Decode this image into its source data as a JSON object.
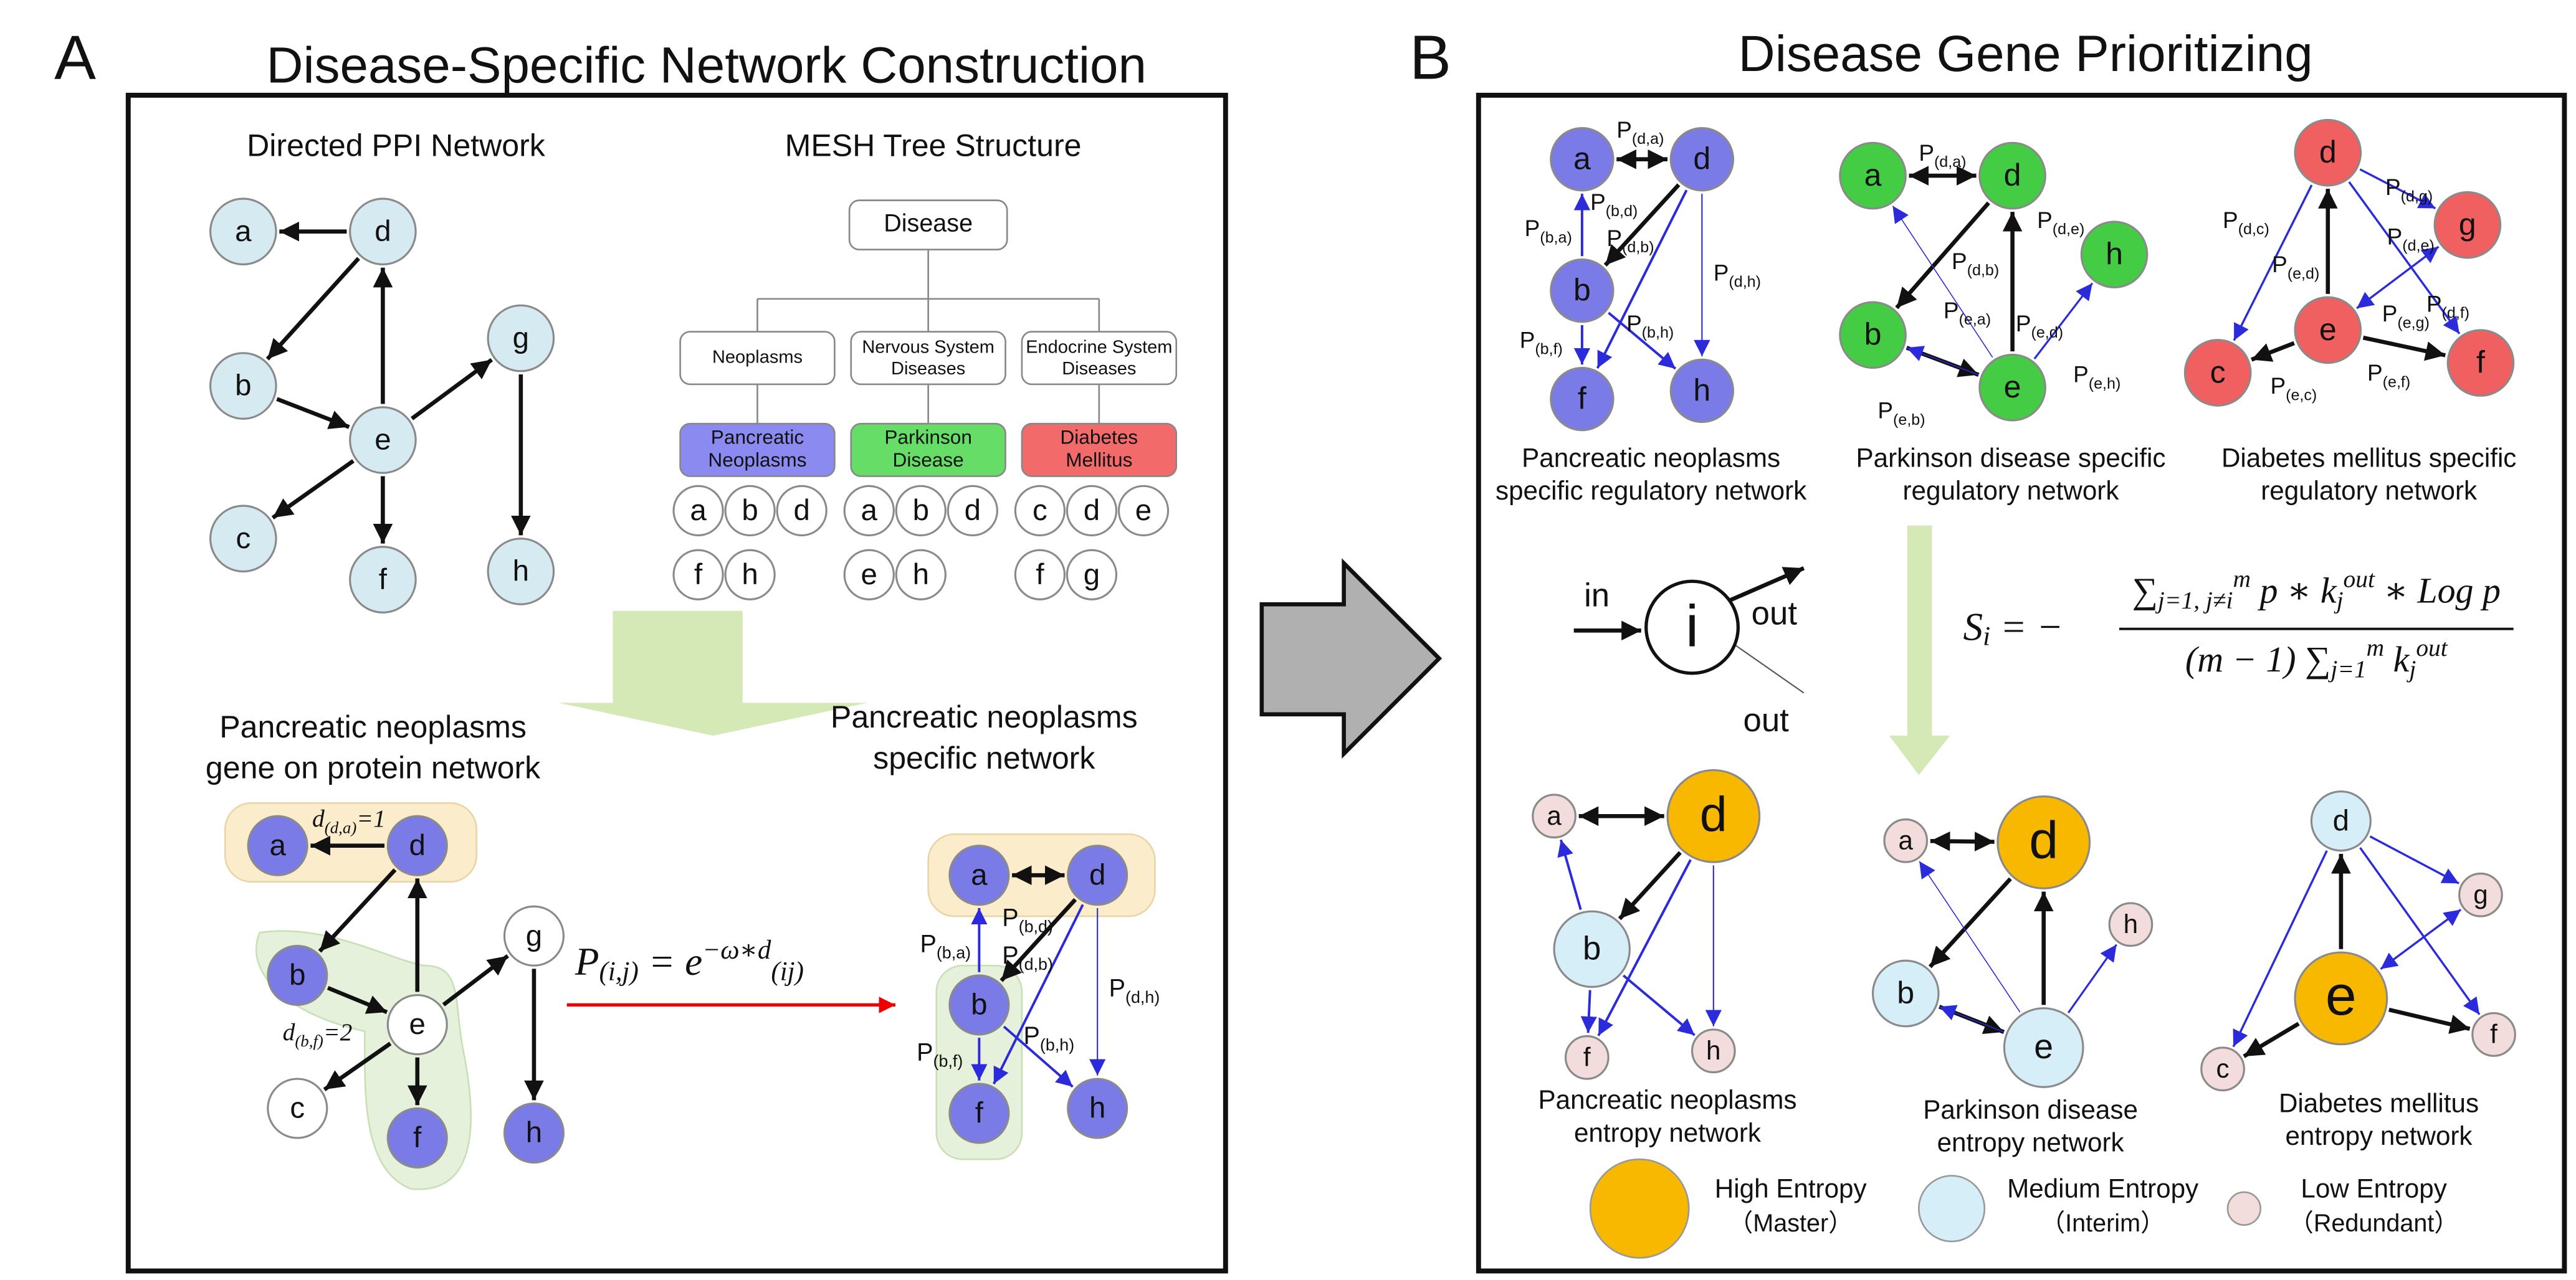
{
  "panel_a": {
    "letter": "A",
    "title": "Disease-Specific  Network Construction",
    "ppi": {
      "title": "Directed PPI Network",
      "nodes": [
        "a",
        "d",
        "b",
        "e",
        "g",
        "c",
        "f",
        "h"
      ]
    },
    "mesh": {
      "title": "MESH Tree Structure",
      "root": "Disease",
      "branches": [
        {
          "category": [
            "Neoplasms"
          ],
          "disease": [
            "Pancreatic",
            "Neoplasms"
          ],
          "genes": [
            "a",
            "b",
            "d",
            "f",
            "h"
          ]
        },
        {
          "category": [
            "Nervous System",
            "Diseases"
          ],
          "disease": [
            "Parkinson",
            "Disease"
          ],
          "genes": [
            "a",
            "b",
            "d",
            "e",
            "h"
          ]
        },
        {
          "category": [
            "Endocrine System",
            "Diseases"
          ],
          "disease": [
            "Diabetes",
            "Mellitus"
          ],
          "genes": [
            "c",
            "d",
            "e",
            "f",
            "g"
          ]
        }
      ]
    },
    "gene_network": {
      "title": [
        "Pancreatic neoplasms",
        "gene on protein network"
      ],
      "nodes": [
        "a",
        "d",
        "b",
        "e",
        "g",
        "c",
        "f",
        "h"
      ],
      "distance_labels": [
        {
          "symbol": "d",
          "sub": "(d,a)",
          "rest": "=1"
        },
        {
          "symbol": "d",
          "sub": "(b,f)",
          "rest": "=2"
        }
      ]
    },
    "formula": {
      "lhs": "P",
      "lhs_sub": "(i,j)",
      "eq": " = e",
      "sup": "−ω∗d",
      "sup_sub": "(ij)"
    },
    "specific_network": {
      "title": [
        "Pancreatic neoplasms",
        "specific network"
      ],
      "nodes": [
        "a",
        "d",
        "b",
        "f",
        "h"
      ],
      "edge_symbol": "P",
      "edge_labels": [
        "(b,d)",
        "(b,a)",
        "(d,b)",
        "(d,h)",
        "(b,f)",
        "(b,h)"
      ]
    }
  },
  "panel_b": {
    "letter": "B",
    "title": "Disease Gene Prioritizing",
    "edge_symbol": "P",
    "regulatory_networks": [
      {
        "nodes": [
          "a",
          "d",
          "b",
          "f",
          "h"
        ],
        "edge_labels": [
          "(d,a)",
          "(b,d)",
          "(b,a)",
          "(d,b)",
          "(d,h)",
          "(b,h)",
          "(b,f)"
        ],
        "caption": [
          "Pancreatic neoplasms",
          "specific regulatory network"
        ]
      },
      {
        "nodes": [
          "a",
          "d",
          "h",
          "b",
          "e"
        ],
        "edge_labels": [
          "(d,a)",
          "(d,e)",
          "(d,b)",
          "(e,a)",
          "(e,d)",
          "(e,h)",
          "(e,b)"
        ],
        "caption": [
          "Parkinson disease specific",
          "regulatory network"
        ]
      },
      {
        "nodes": [
          "d",
          "g",
          "e",
          "c",
          "f"
        ],
        "edge_labels": [
          "(d,g)",
          "(d,c)",
          "(d,e)",
          "(e,d)",
          "(e,g)",
          "(d,f)",
          "(e,f)",
          "(e,c)"
        ],
        "caption": [
          "Diabetes mellitus specific",
          "regulatory network"
        ]
      }
    ],
    "node_diagram": {
      "node": "i",
      "in": "in",
      "out": [
        "out",
        "out"
      ]
    },
    "entropy_formula": {
      "lhs": "S",
      "lhs_sub": "i",
      "eq": " = −",
      "numerator": [
        "∑",
        "j=1, j≠i",
        "m",
        " p ∗ k",
        "j",
        "out",
        " ∗ Log p"
      ],
      "denominator": [
        "(m − 1) ∑",
        "j=1",
        "m",
        " k",
        "j",
        "out"
      ]
    },
    "entropy_networks": [
      {
        "nodes": [
          "a",
          "d",
          "b",
          "f",
          "h"
        ],
        "caption": [
          "Pancreatic neoplasms",
          "entropy network"
        ]
      },
      {
        "nodes": [
          "a",
          "d",
          "h",
          "b",
          "e"
        ],
        "caption": [
          "Parkinson disease",
          "entropy network"
        ]
      },
      {
        "nodes": [
          "d",
          "g",
          "e",
          "c",
          "f"
        ],
        "caption": [
          "Diabetes mellitus",
          "entropy network"
        ]
      }
    ],
    "legend": [
      {
        "label": "High Entropy",
        "note": "（Master）"
      },
      {
        "label": "Medium Entropy",
        "note": "（Interim）"
      },
      {
        "label": "Low Entropy",
        "note": "（Redundant）"
      }
    ]
  }
}
